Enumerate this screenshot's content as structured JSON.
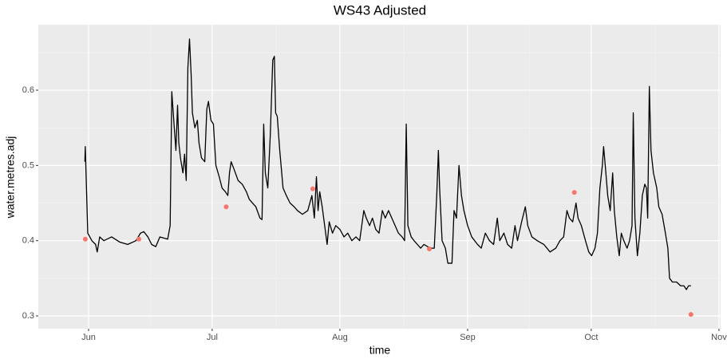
{
  "chart_data": {
    "type": "line",
    "title": "WS43 Adjusted",
    "x_label": "time",
    "y_label": "water.metres.adj",
    "xlim": [
      -12.2,
      153.4
    ],
    "xticks": [
      {
        "value": 0,
        "label": "Jun"
      },
      {
        "value": 30,
        "label": "Jul"
      },
      {
        "value": 61,
        "label": "Aug"
      },
      {
        "value": 92,
        "label": "Sep"
      },
      {
        "value": 122,
        "label": "Oct"
      },
      {
        "value": 153,
        "label": "Nov"
      }
    ],
    "ylim": [
      0.283,
      0.687
    ],
    "yticks": [
      {
        "value": 0.3,
        "label": "0.3"
      },
      {
        "value": 0.4,
        "label": "0.4"
      },
      {
        "value": 0.5,
        "label": "0.5"
      },
      {
        "value": 0.6,
        "label": "0.6"
      }
    ],
    "grid": true,
    "series": [
      {
        "type": "line",
        "color": "#000000",
        "x": [
          -0.9,
          -0.8,
          -0.2,
          0.8,
          1.7,
          2.1,
          2.7,
          3.7,
          5.6,
          7.6,
          9.5,
          11.5,
          12.6,
          13.4,
          14.4,
          15.3,
          16.3,
          17.3,
          19.2,
          19.8,
          20.2,
          20.8,
          21.2,
          21.6,
          21.9,
          22.3,
          22.9,
          23.3,
          23.7,
          24.1,
          24.5,
          24.9,
          25.2,
          25.8,
          26.4,
          26.8,
          27.4,
          28.2,
          28.7,
          29.1,
          29.7,
          30.3,
          30.9,
          31.7,
          32.4,
          33.2,
          33.8,
          34.2,
          34.6,
          35.3,
          36.3,
          37.3,
          38.3,
          39.0,
          39.8,
          40.6,
          41.6,
          42.1,
          42.5,
          42.9,
          43.5,
          44.1,
          44.7,
          45.1,
          45.4,
          45.8,
          46.4,
          47.2,
          48.0,
          48.9,
          49.9,
          50.7,
          51.9,
          53.2,
          54.2,
          54.8,
          55.3,
          55.7,
          56.1,
          56.7,
          57.3,
          57.9,
          58.4,
          59.2,
          60.0,
          61.0,
          62.0,
          62.9,
          63.9,
          64.9,
          65.8,
          66.8,
          67.4,
          68.2,
          68.9,
          69.7,
          70.5,
          71.3,
          72.0,
          72.8,
          73.6,
          74.4,
          75.2,
          76.1,
          76.7,
          77.1,
          77.5,
          78.3,
          79.0,
          79.8,
          80.6,
          81.4,
          82.3,
          83.3,
          83.9,
          84.5,
          84.9,
          85.2,
          85.8,
          86.6,
          87.2,
          88.2,
          88.7,
          89.3,
          89.9,
          90.5,
          91.1,
          92.0,
          93.0,
          94.4,
          95.3,
          96.3,
          97.3,
          98.3,
          99.2,
          99.8,
          100.8,
          101.7,
          102.7,
          103.5,
          104.1,
          105.1,
          106.0,
          106.6,
          107.6,
          108.9,
          110.5,
          112.0,
          113.4,
          114.4,
          115.3,
          116.1,
          116.7,
          117.5,
          118.3,
          118.8,
          119.6,
          120.6,
          121.4,
          122.1,
          122.9,
          123.5,
          124.1,
          124.7,
          125.0,
          125.4,
          126.0,
          126.6,
          127.2,
          127.6,
          128.2,
          128.8,
          129.3,
          129.9,
          130.7,
          131.3,
          131.9,
          132.2,
          132.6,
          133.2,
          133.8,
          134.4,
          135.0,
          135.4,
          135.7,
          136.1,
          136.5,
          137.1,
          137.9,
          138.4,
          139.2,
          140.0,
          140.6,
          141.0,
          141.7,
          142.7,
          143.7,
          144.5,
          145.1,
          145.6,
          146.2
        ],
        "values": [
          0.505,
          0.525,
          0.41,
          0.4,
          0.395,
          0.385,
          0.405,
          0.4,
          0.405,
          0.398,
          0.395,
          0.4,
          0.41,
          0.412,
          0.405,
          0.395,
          0.392,
          0.405,
          0.402,
          0.42,
          0.598,
          0.55,
          0.52,
          0.58,
          0.53,
          0.51,
          0.49,
          0.515,
          0.48,
          0.63,
          0.668,
          0.62,
          0.57,
          0.55,
          0.56,
          0.53,
          0.51,
          0.505,
          0.575,
          0.585,
          0.56,
          0.555,
          0.5,
          0.485,
          0.47,
          0.465,
          0.46,
          0.49,
          0.505,
          0.495,
          0.48,
          0.475,
          0.465,
          0.455,
          0.45,
          0.445,
          0.43,
          0.428,
          0.555,
          0.49,
          0.47,
          0.54,
          0.64,
          0.645,
          0.57,
          0.565,
          0.52,
          0.47,
          0.46,
          0.45,
          0.445,
          0.44,
          0.435,
          0.44,
          0.46,
          0.43,
          0.485,
          0.44,
          0.465,
          0.445,
          0.42,
          0.395,
          0.425,
          0.41,
          0.42,
          0.415,
          0.405,
          0.41,
          0.4,
          0.405,
          0.4,
          0.44,
          0.43,
          0.42,
          0.43,
          0.415,
          0.41,
          0.44,
          0.43,
          0.44,
          0.43,
          0.42,
          0.41,
          0.405,
          0.4,
          0.555,
          0.42,
          0.405,
          0.4,
          0.395,
          0.39,
          0.395,
          0.392,
          0.39,
          0.39,
          0.46,
          0.52,
          0.47,
          0.4,
          0.39,
          0.37,
          0.37,
          0.44,
          0.43,
          0.5,
          0.46,
          0.44,
          0.42,
          0.405,
          0.395,
          0.39,
          0.41,
          0.4,
          0.395,
          0.43,
          0.4,
          0.41,
          0.395,
          0.39,
          0.42,
          0.4,
          0.425,
          0.445,
          0.42,
          0.405,
          0.4,
          0.395,
          0.385,
          0.39,
          0.4,
          0.405,
          0.44,
          0.43,
          0.425,
          0.45,
          0.43,
          0.42,
          0.4,
          0.385,
          0.38,
          0.39,
          0.41,
          0.47,
          0.5,
          0.525,
          0.5,
          0.46,
          0.44,
          0.49,
          0.44,
          0.405,
          0.38,
          0.41,
          0.4,
          0.39,
          0.4,
          0.42,
          0.57,
          0.43,
          0.38,
          0.41,
          0.46,
          0.475,
          0.47,
          0.43,
          0.605,
          0.52,
          0.49,
          0.47,
          0.445,
          0.435,
          0.41,
          0.39,
          0.35,
          0.345,
          0.345,
          0.34,
          0.34,
          0.335,
          0.34,
          0.34
        ]
      },
      {
        "type": "scatter",
        "color": "#f8766d",
        "x": [
          -0.8,
          12.2,
          33.4,
          54.4,
          82.7,
          117.9,
          146.2
        ],
        "values": [
          0.402,
          0.402,
          0.445,
          0.469,
          0.389,
          0.464,
          0.302
        ]
      }
    ]
  }
}
